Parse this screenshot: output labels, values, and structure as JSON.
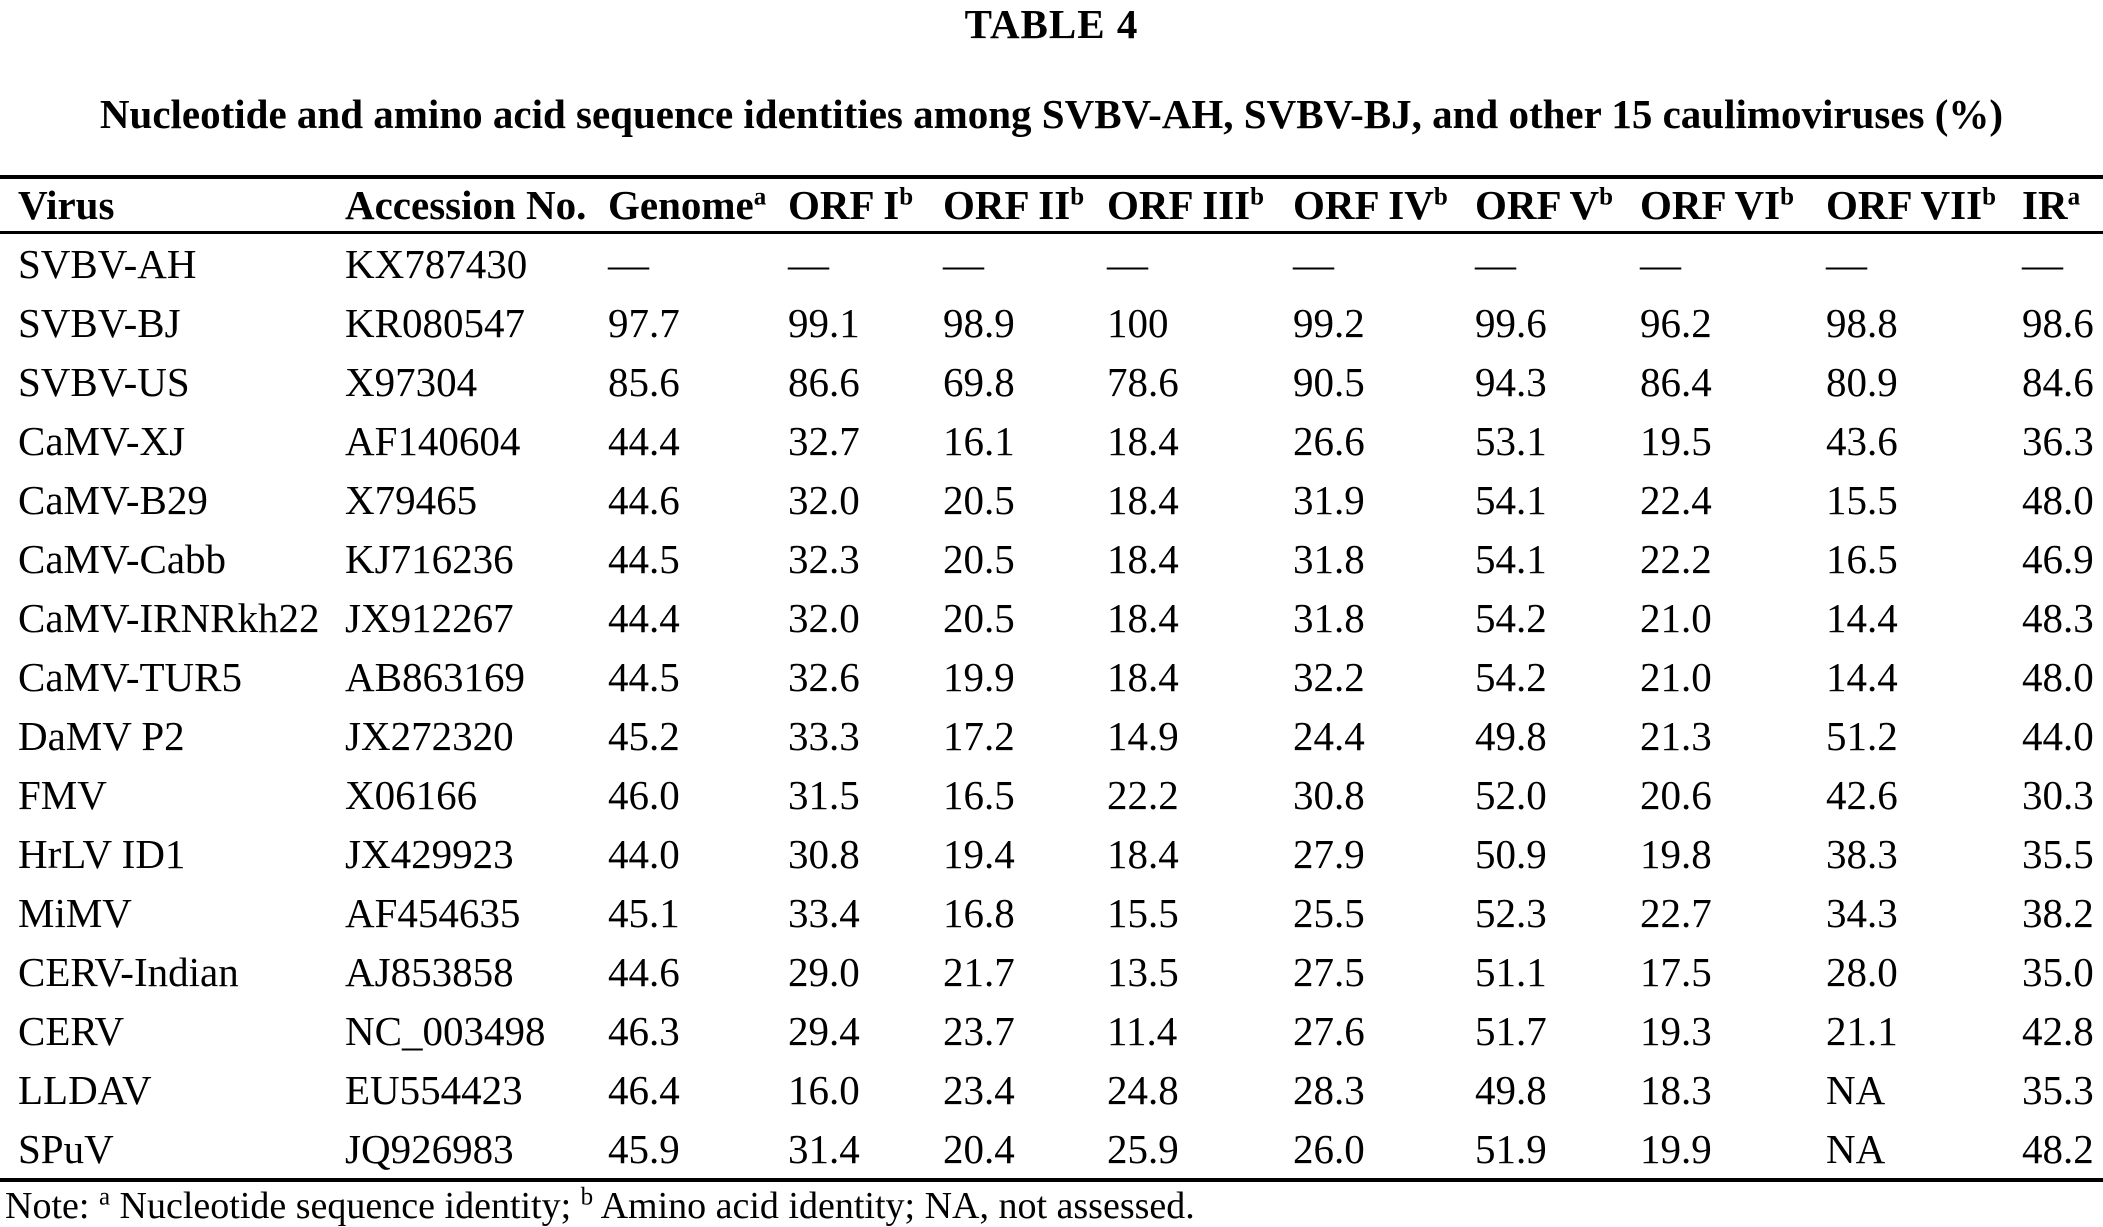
{
  "title": "TABLE 4",
  "subtitle": "Nucleotide and amino acid sequence identities among SVBV-AH, SVBV-BJ, and other 15 caulimoviruses (%)",
  "table": {
    "columns": [
      {
        "label": "Virus",
        "sup": ""
      },
      {
        "label": "Accession No.",
        "sup": ""
      },
      {
        "label": "Genome",
        "sup": "a"
      },
      {
        "label": "ORF I",
        "sup": "b"
      },
      {
        "label": "ORF II",
        "sup": "b"
      },
      {
        "label": "ORF III",
        "sup": "b"
      },
      {
        "label": "ORF IV",
        "sup": "b"
      },
      {
        "label": "ORF V",
        "sup": "b"
      },
      {
        "label": "ORF VI",
        "sup": "b"
      },
      {
        "label": "ORF VII",
        "sup": "b"
      },
      {
        "label": "IR",
        "sup": "a"
      }
    ],
    "rows": [
      [
        "SVBV-AH",
        "KX787430",
        "—",
        "—",
        "—",
        "—",
        "—",
        "—",
        "—",
        "—",
        "—"
      ],
      [
        "SVBV-BJ",
        "KR080547",
        "97.7",
        "99.1",
        "98.9",
        "100",
        "99.2",
        "99.6",
        "96.2",
        "98.8",
        "98.6"
      ],
      [
        "SVBV-US",
        "X97304",
        "85.6",
        "86.6",
        "69.8",
        "78.6",
        "90.5",
        "94.3",
        "86.4",
        "80.9",
        "84.6"
      ],
      [
        "CaMV-XJ",
        "AF140604",
        "44.4",
        "32.7",
        "16.1",
        "18.4",
        "26.6",
        "53.1",
        "19.5",
        "43.6",
        "36.3"
      ],
      [
        "CaMV-B29",
        "X79465",
        "44.6",
        "32.0",
        "20.5",
        "18.4",
        "31.9",
        "54.1",
        "22.4",
        "15.5",
        "48.0"
      ],
      [
        "CaMV-Cabb",
        "KJ716236",
        "44.5",
        "32.3",
        "20.5",
        "18.4",
        "31.8",
        "54.1",
        "22.2",
        "16.5",
        "46.9"
      ],
      [
        "CaMV-IRNRkh22",
        "JX912267",
        "44.4",
        "32.0",
        "20.5",
        "18.4",
        "31.8",
        "54.2",
        "21.0",
        "14.4",
        "48.3"
      ],
      [
        "CaMV-TUR5",
        "AB863169",
        "44.5",
        "32.6",
        "19.9",
        "18.4",
        "32.2",
        "54.2",
        "21.0",
        "14.4",
        "48.0"
      ],
      [
        "DaMV P2",
        "JX272320",
        "45.2",
        "33.3",
        "17.2",
        "14.9",
        "24.4",
        "49.8",
        "21.3",
        "51.2",
        "44.0"
      ],
      [
        "FMV",
        "X06166",
        "46.0",
        "31.5",
        "16.5",
        "22.2",
        "30.8",
        "52.0",
        "20.6",
        "42.6",
        "30.3"
      ],
      [
        "HrLV ID1",
        "JX429923",
        "44.0",
        "30.8",
        "19.4",
        "18.4",
        "27.9",
        "50.9",
        "19.8",
        "38.3",
        "35.5"
      ],
      [
        "MiMV",
        "AF454635",
        "45.1",
        "33.4",
        "16.8",
        "15.5",
        "25.5",
        "52.3",
        "22.7",
        "34.3",
        "38.2"
      ],
      [
        "CERV-Indian",
        "AJ853858",
        "44.6",
        "29.0",
        "21.7",
        "13.5",
        "27.5",
        "51.1",
        "17.5",
        "28.0",
        "35.0"
      ],
      [
        "CERV",
        "NC_003498",
        "46.3",
        "29.4",
        "23.7",
        "11.4",
        "27.6",
        "51.7",
        "19.3",
        "21.1",
        "42.8"
      ],
      [
        "LLDAV",
        "EU554423",
        "46.4",
        "16.0",
        "23.4",
        "24.8",
        "28.3",
        "49.8",
        "18.3",
        "NA",
        "35.3"
      ],
      [
        "SPuV",
        "JQ926983",
        "45.9",
        "31.4",
        "20.4",
        "25.9",
        "26.0",
        "51.9",
        "19.9",
        "NA",
        "48.2"
      ]
    ]
  },
  "footnote": {
    "prefix": "Note:",
    "sup_a": "a",
    "text_a": "Nucleotide sequence identity;",
    "sup_b": "b",
    "text_b": "Amino acid identity; NA, not assessed."
  }
}
